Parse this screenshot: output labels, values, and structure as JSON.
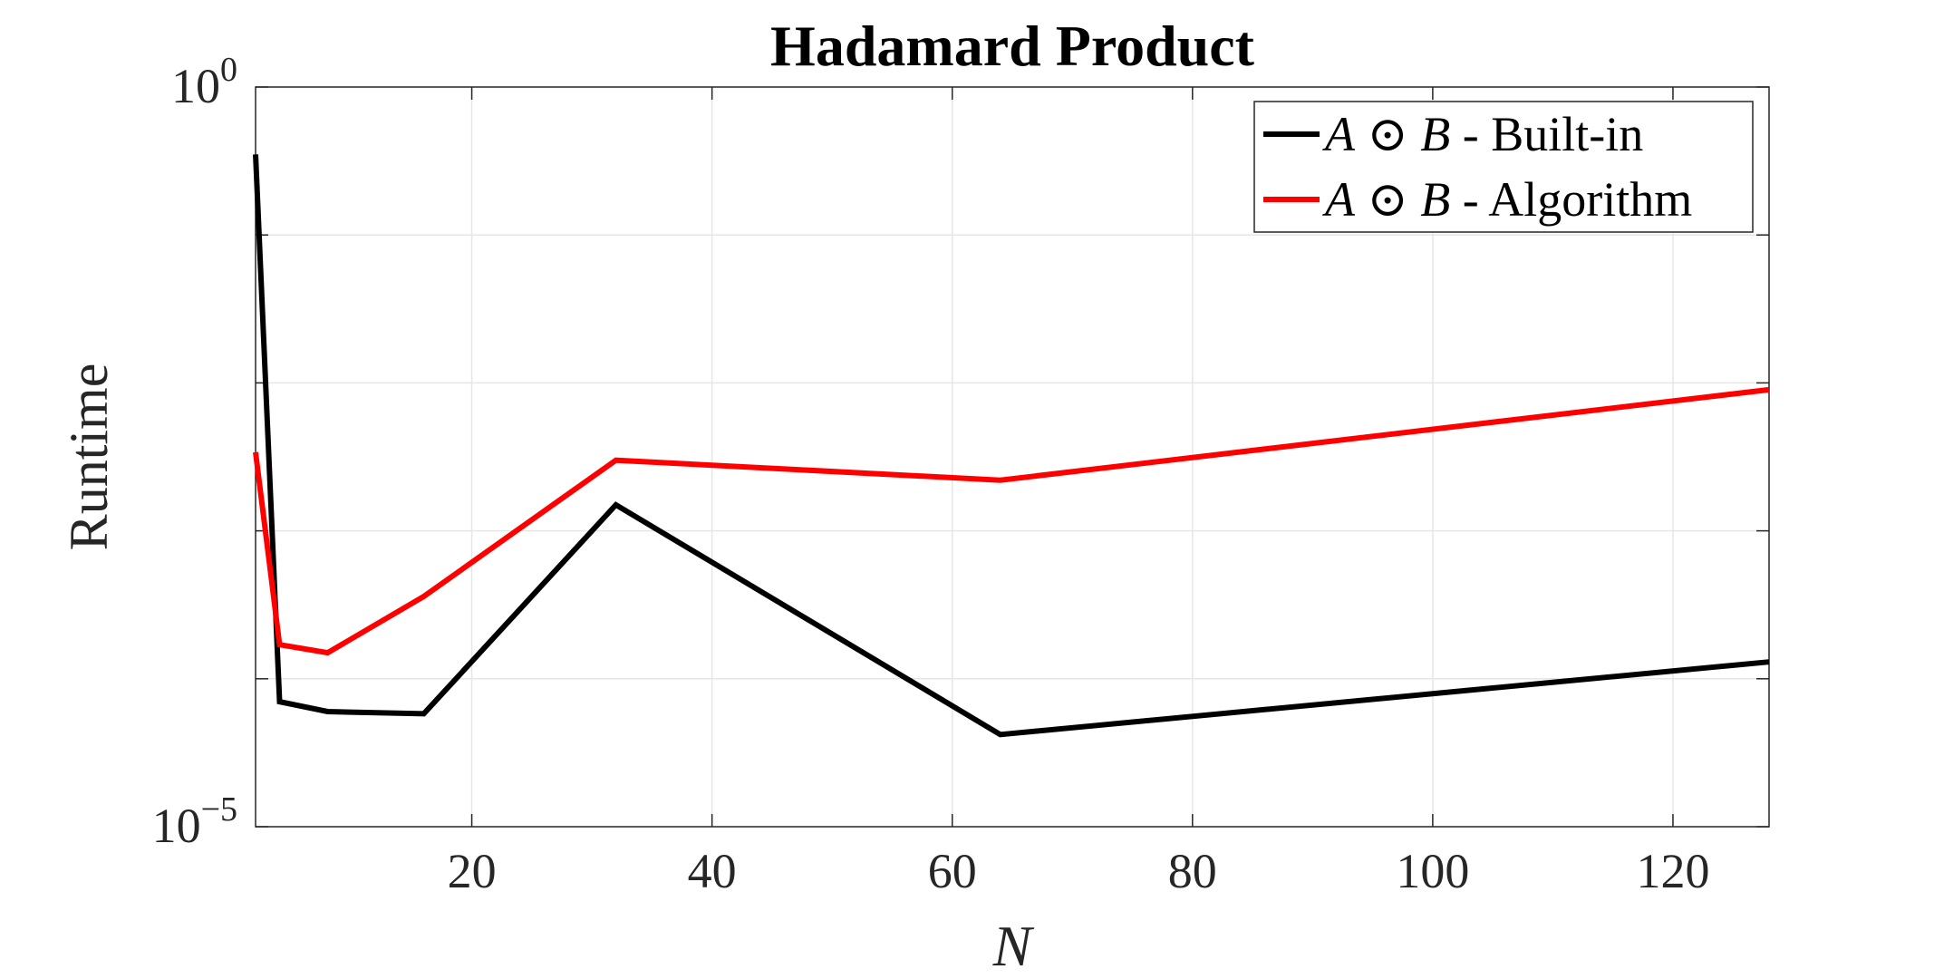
{
  "chart_data": {
    "type": "line",
    "title": "Hadamard Product",
    "xlabel": "N",
    "ylabel": "Runtime",
    "xlim": [
      2,
      128
    ],
    "ylim": [
      1e-05,
      1
    ],
    "y_scale": "log",
    "x_ticks": [
      20,
      40,
      60,
      80,
      100,
      120
    ],
    "x_tick_labels": [
      "20",
      "40",
      "60",
      "80",
      "100",
      "120"
    ],
    "y_ticks": [
      1e-05,
      0.0001,
      0.001,
      0.01,
      0.1,
      1
    ],
    "y_tick_labels": [
      {
        "base": "10",
        "exp": "−5",
        "value": 1e-05
      },
      {
        "base": "10",
        "exp": "0",
        "value": 1
      }
    ],
    "grid": true,
    "legend_position": "top-right",
    "series": [
      {
        "name": "A ⊙ B - Built-in",
        "legend": {
          "a": "A",
          "op": "⊙",
          "b": "B",
          "suffix": "- Built-in"
        },
        "color": "#000000",
        "x": [
          2,
          4,
          8,
          16,
          32,
          64,
          128
        ],
        "y": [
          0.35,
          7e-05,
          6e-05,
          5.8e-05,
          0.0015,
          4.2e-05,
          0.00013
        ]
      },
      {
        "name": "A ⊙ B - Algorithm",
        "legend": {
          "a": "A",
          "op": "⊙",
          "b": "B",
          "suffix": "- Algorithm"
        },
        "color": "#ff0000",
        "x": [
          2,
          4,
          8,
          16,
          32,
          64,
          128
        ],
        "y": [
          0.0034,
          0.00017,
          0.00015,
          0.00036,
          0.003,
          0.0022,
          0.009
        ]
      }
    ]
  }
}
